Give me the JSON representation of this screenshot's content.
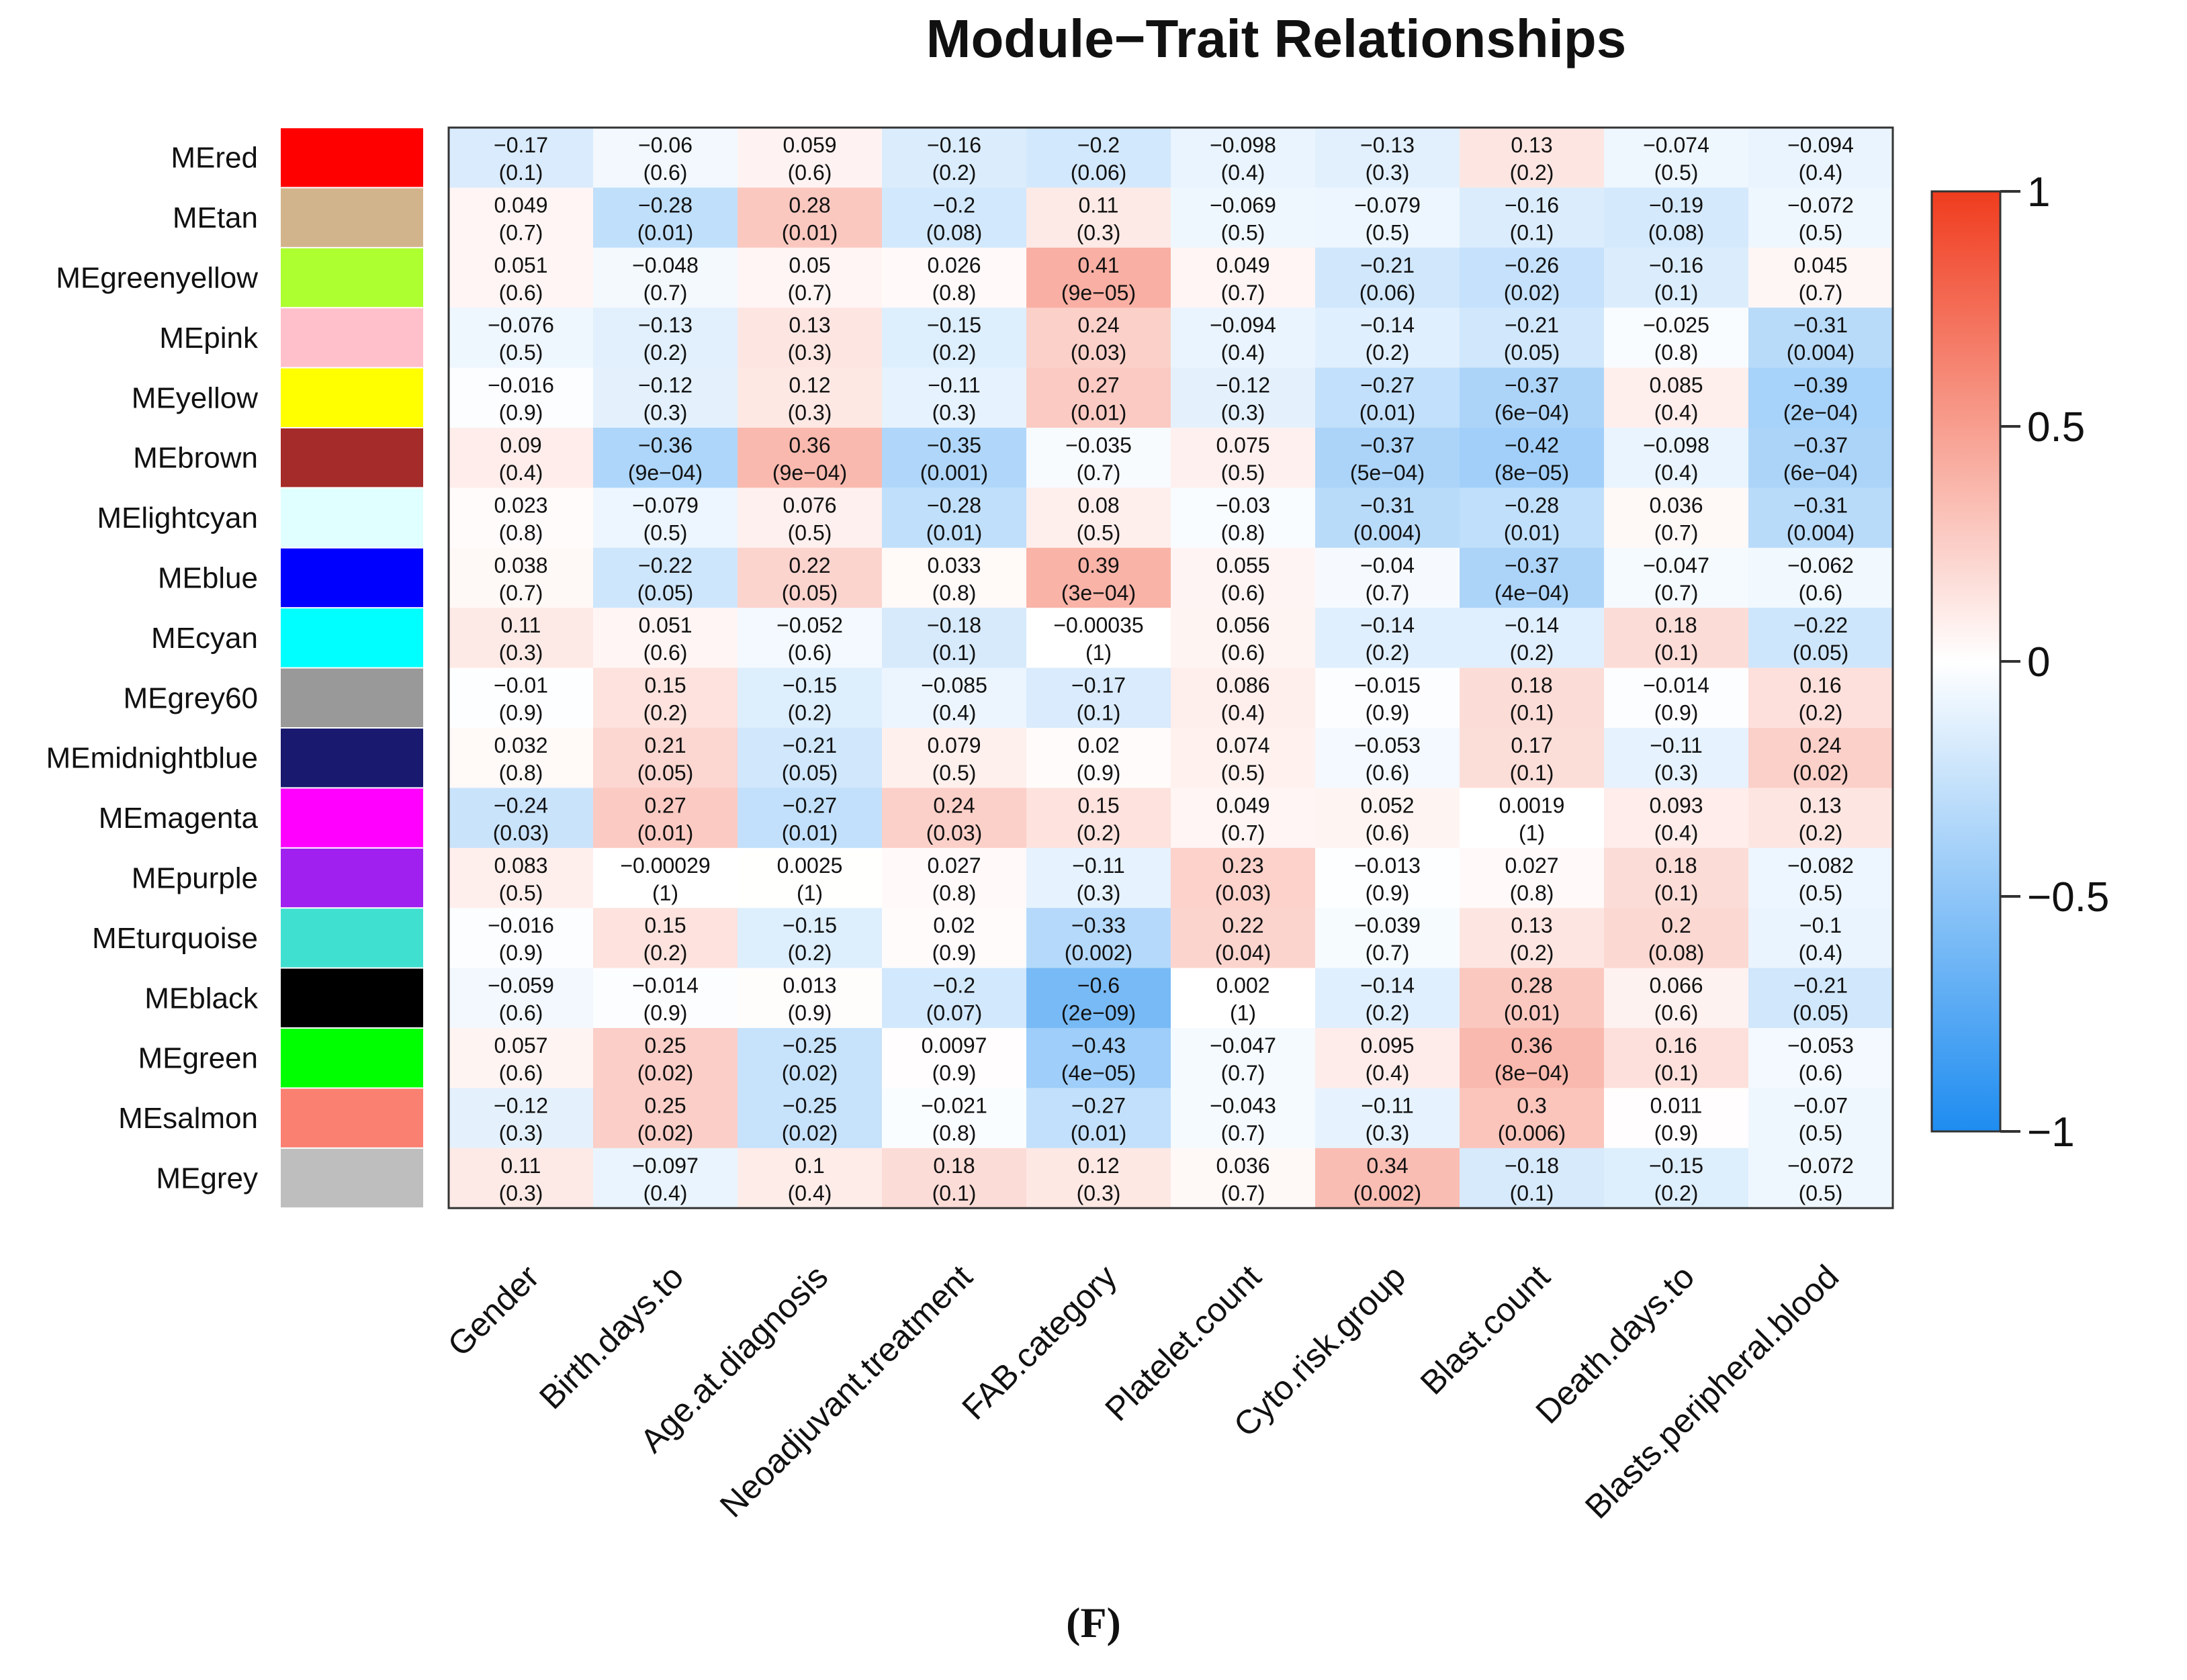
{
  "chart_data": {
    "type": "heatmap",
    "title": "Module−Trait Relationships",
    "panel_label": "(F)",
    "rows": [
      "MEred",
      "MEtan",
      "MEgreenyellow",
      "MEpink",
      "MEyellow",
      "MEbrown",
      "MElightcyan",
      "MEblue",
      "MEcyan",
      "MEgrey60",
      "MEmidnightblue",
      "MEmagenta",
      "MEpurple",
      "MEturquoise",
      "MEblack",
      "MEgreen",
      "MEsalmon",
      "MEgrey"
    ],
    "row_colors": [
      "#ff0000",
      "#d2b48c",
      "#adff2f",
      "#ffc0cb",
      "#ffff00",
      "#a52a2a",
      "#e0ffff",
      "#0000ff",
      "#00ffff",
      "#999999",
      "#191970",
      "#ff00ff",
      "#a020f0",
      "#40e0d0",
      "#000000",
      "#00ff00",
      "#fa8072",
      "#bebebe"
    ],
    "columns": [
      "Gender",
      "Birth.days.to",
      "Age.at.diagnosis",
      "Neoadjuvant.treatment",
      "FAB.category",
      "Platelet.count",
      "Cyto.risk.group",
      "Blast.count",
      "Death.days.to",
      "Blasts.peripheral.blood"
    ],
    "values": [
      [
        -0.17,
        -0.06,
        0.059,
        -0.16,
        -0.2,
        -0.098,
        -0.13,
        0.13,
        -0.074,
        -0.094
      ],
      [
        0.049,
        -0.28,
        0.28,
        -0.2,
        0.11,
        -0.069,
        -0.079,
        -0.16,
        -0.19,
        -0.072
      ],
      [
        0.051,
        -0.048,
        0.05,
        0.026,
        0.41,
        0.049,
        -0.21,
        -0.26,
        -0.16,
        0.045
      ],
      [
        -0.076,
        -0.13,
        0.13,
        -0.15,
        0.24,
        -0.094,
        -0.14,
        -0.21,
        -0.025,
        -0.31
      ],
      [
        -0.016,
        -0.12,
        0.12,
        -0.11,
        0.27,
        -0.12,
        -0.27,
        -0.37,
        0.085,
        -0.39
      ],
      [
        0.09,
        -0.36,
        0.36,
        -0.35,
        -0.035,
        0.075,
        -0.37,
        -0.42,
        -0.098,
        -0.37
      ],
      [
        0.023,
        -0.079,
        0.076,
        -0.28,
        0.08,
        -0.03,
        -0.31,
        -0.28,
        0.036,
        -0.31
      ],
      [
        0.038,
        -0.22,
        0.22,
        0.033,
        0.39,
        0.055,
        -0.04,
        -0.37,
        -0.047,
        -0.062
      ],
      [
        0.11,
        0.051,
        -0.052,
        -0.18,
        -0.00035,
        0.056,
        -0.14,
        -0.14,
        0.18,
        -0.22
      ],
      [
        -0.01,
        0.15,
        -0.15,
        -0.085,
        -0.17,
        0.086,
        -0.015,
        0.18,
        -0.014,
        0.16
      ],
      [
        0.032,
        0.21,
        -0.21,
        0.079,
        0.02,
        0.074,
        -0.053,
        0.17,
        -0.11,
        0.24
      ],
      [
        -0.24,
        0.27,
        -0.27,
        0.24,
        0.15,
        0.049,
        0.052,
        0.0019,
        0.093,
        0.13
      ],
      [
        0.083,
        -0.00029,
        0.0025,
        0.027,
        -0.11,
        0.23,
        -0.013,
        0.027,
        0.18,
        -0.082
      ],
      [
        -0.016,
        0.15,
        -0.15,
        0.02,
        -0.33,
        0.22,
        -0.039,
        0.13,
        0.2,
        -0.1
      ],
      [
        -0.059,
        -0.014,
        0.013,
        -0.2,
        -0.6,
        0.002,
        -0.14,
        0.28,
        0.066,
        -0.21
      ],
      [
        0.057,
        0.25,
        -0.25,
        0.0097,
        -0.43,
        -0.047,
        0.095,
        0.36,
        0.16,
        -0.053
      ],
      [
        -0.12,
        0.25,
        -0.25,
        -0.021,
        -0.27,
        -0.043,
        -0.11,
        0.3,
        0.011,
        -0.07
      ],
      [
        0.11,
        -0.097,
        0.1,
        0.18,
        0.12,
        0.036,
        0.34,
        -0.18,
        -0.15,
        -0.072
      ]
    ],
    "value_labels": [
      [
        "−0.17",
        "−0.06",
        "0.059",
        "−0.16",
        "−0.2",
        "−0.098",
        "−0.13",
        "0.13",
        "−0.074",
        "−0.094"
      ],
      [
        "0.049",
        "−0.28",
        "0.28",
        "−0.2",
        "0.11",
        "−0.069",
        "−0.079",
        "−0.16",
        "−0.19",
        "−0.072"
      ],
      [
        "0.051",
        "−0.048",
        "0.05",
        "0.026",
        "0.41",
        "0.049",
        "−0.21",
        "−0.26",
        "−0.16",
        "0.045"
      ],
      [
        "−0.076",
        "−0.13",
        "0.13",
        "−0.15",
        "0.24",
        "−0.094",
        "−0.14",
        "−0.21",
        "−0.025",
        "−0.31"
      ],
      [
        "−0.016",
        "−0.12",
        "0.12",
        "−0.11",
        "0.27",
        "−0.12",
        "−0.27",
        "−0.37",
        "0.085",
        "−0.39"
      ],
      [
        "0.09",
        "−0.36",
        "0.36",
        "−0.35",
        "−0.035",
        "0.075",
        "−0.37",
        "−0.42",
        "−0.098",
        "−0.37"
      ],
      [
        "0.023",
        "−0.079",
        "0.076",
        "−0.28",
        "0.08",
        "−0.03",
        "−0.31",
        "−0.28",
        "0.036",
        "−0.31"
      ],
      [
        "0.038",
        "−0.22",
        "0.22",
        "0.033",
        "0.39",
        "0.055",
        "−0.04",
        "−0.37",
        "−0.047",
        "−0.062"
      ],
      [
        "0.11",
        "0.051",
        "−0.052",
        "−0.18",
        "−0.00035",
        "0.056",
        "−0.14",
        "−0.14",
        "0.18",
        "−0.22"
      ],
      [
        "−0.01",
        "0.15",
        "−0.15",
        "−0.085",
        "−0.17",
        "0.086",
        "−0.015",
        "0.18",
        "−0.014",
        "0.16"
      ],
      [
        "0.032",
        "0.21",
        "−0.21",
        "0.079",
        "0.02",
        "0.074",
        "−0.053",
        "0.17",
        "−0.11",
        "0.24"
      ],
      [
        "−0.24",
        "0.27",
        "−0.27",
        "0.24",
        "0.15",
        "0.049",
        "0.052",
        "0.0019",
        "0.093",
        "0.13"
      ],
      [
        "0.083",
        "−0.00029",
        "0.0025",
        "0.027",
        "−0.11",
        "0.23",
        "−0.013",
        "0.027",
        "0.18",
        "−0.082"
      ],
      [
        "−0.016",
        "0.15",
        "−0.15",
        "0.02",
        "−0.33",
        "0.22",
        "−0.039",
        "0.13",
        "0.2",
        "−0.1"
      ],
      [
        "−0.059",
        "−0.014",
        "0.013",
        "−0.2",
        "−0.6",
        "0.002",
        "−0.14",
        "0.28",
        "0.066",
        "−0.21"
      ],
      [
        "0.057",
        "0.25",
        "−0.25",
        "0.0097",
        "−0.43",
        "−0.047",
        "0.095",
        "0.36",
        "0.16",
        "−0.053"
      ],
      [
        "−0.12",
        "0.25",
        "−0.25",
        "−0.021",
        "−0.27",
        "−0.043",
        "−0.11",
        "0.3",
        "0.011",
        "−0.07"
      ],
      [
        "0.11",
        "−0.097",
        "0.1",
        "0.18",
        "0.12",
        "0.036",
        "0.34",
        "−0.18",
        "−0.15",
        "−0.072"
      ]
    ],
    "p_labels": [
      [
        "(0.1)",
        "(0.6)",
        "(0.6)",
        "(0.2)",
        "(0.06)",
        "(0.4)",
        "(0.3)",
        "(0.2)",
        "(0.5)",
        "(0.4)"
      ],
      [
        "(0.7)",
        "(0.01)",
        "(0.01)",
        "(0.08)",
        "(0.3)",
        "(0.5)",
        "(0.5)",
        "(0.1)",
        "(0.08)",
        "(0.5)"
      ],
      [
        "(0.6)",
        "(0.7)",
        "(0.7)",
        "(0.8)",
        "(9e−05)",
        "(0.7)",
        "(0.06)",
        "(0.02)",
        "(0.1)",
        "(0.7)"
      ],
      [
        "(0.5)",
        "(0.2)",
        "(0.3)",
        "(0.2)",
        "(0.03)",
        "(0.4)",
        "(0.2)",
        "(0.05)",
        "(0.8)",
        "(0.004)"
      ],
      [
        "(0.9)",
        "(0.3)",
        "(0.3)",
        "(0.3)",
        "(0.01)",
        "(0.3)",
        "(0.01)",
        "(6e−04)",
        "(0.4)",
        "(2e−04)"
      ],
      [
        "(0.4)",
        "(9e−04)",
        "(9e−04)",
        "(0.001)",
        "(0.7)",
        "(0.5)",
        "(5e−04)",
        "(8e−05)",
        "(0.4)",
        "(6e−04)"
      ],
      [
        "(0.8)",
        "(0.5)",
        "(0.5)",
        "(0.01)",
        "(0.5)",
        "(0.8)",
        "(0.004)",
        "(0.01)",
        "(0.7)",
        "(0.004)"
      ],
      [
        "(0.7)",
        "(0.05)",
        "(0.05)",
        "(0.8)",
        "(3e−04)",
        "(0.6)",
        "(0.7)",
        "(4e−04)",
        "(0.7)",
        "(0.6)"
      ],
      [
        "(0.3)",
        "(0.6)",
        "(0.6)",
        "(0.1)",
        "(1)",
        "(0.6)",
        "(0.2)",
        "(0.2)",
        "(0.1)",
        "(0.05)"
      ],
      [
        "(0.9)",
        "(0.2)",
        "(0.2)",
        "(0.4)",
        "(0.1)",
        "(0.4)",
        "(0.9)",
        "(0.1)",
        "(0.9)",
        "(0.2)"
      ],
      [
        "(0.8)",
        "(0.05)",
        "(0.05)",
        "(0.5)",
        "(0.9)",
        "(0.5)",
        "(0.6)",
        "(0.1)",
        "(0.3)",
        "(0.02)"
      ],
      [
        "(0.03)",
        "(0.01)",
        "(0.01)",
        "(0.03)",
        "(0.2)",
        "(0.7)",
        "(0.6)",
        "(1)",
        "(0.4)",
        "(0.2)"
      ],
      [
        "(0.5)",
        "(1)",
        "(1)",
        "(0.8)",
        "(0.3)",
        "(0.03)",
        "(0.9)",
        "(0.8)",
        "(0.1)",
        "(0.5)"
      ],
      [
        "(0.9)",
        "(0.2)",
        "(0.2)",
        "(0.9)",
        "(0.002)",
        "(0.04)",
        "(0.7)",
        "(0.2)",
        "(0.08)",
        "(0.4)"
      ],
      [
        "(0.6)",
        "(0.9)",
        "(0.9)",
        "(0.07)",
        "(2e−09)",
        "(1)",
        "(0.2)",
        "(0.01)",
        "(0.6)",
        "(0.05)"
      ],
      [
        "(0.6)",
        "(0.02)",
        "(0.02)",
        "(0.9)",
        "(4e−05)",
        "(0.7)",
        "(0.4)",
        "(8e−04)",
        "(0.1)",
        "(0.6)"
      ],
      [
        "(0.3)",
        "(0.02)",
        "(0.02)",
        "(0.8)",
        "(0.01)",
        "(0.7)",
        "(0.3)",
        "(0.006)",
        "(0.9)",
        "(0.5)"
      ],
      [
        "(0.3)",
        "(0.4)",
        "(0.4)",
        "(0.1)",
        "(0.3)",
        "(0.7)",
        "(0.002)",
        "(0.1)",
        "(0.2)",
        "(0.5)"
      ]
    ],
    "color_scale": {
      "min": -1,
      "max": 1,
      "low_color": "#1e8cf0",
      "mid_color": "#ffffff",
      "high_color": "#f03c1e",
      "ticks": [
        1,
        0.5,
        0,
        -0.5,
        -1
      ],
      "tick_labels": [
        "1",
        "0.5",
        "0",
        "−0.5",
        "−1"
      ]
    }
  }
}
